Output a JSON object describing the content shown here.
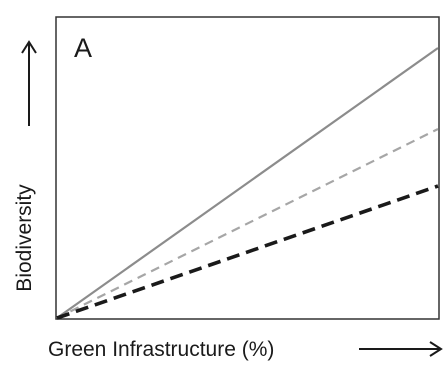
{
  "chart_data": {
    "type": "line",
    "panel_label": "A",
    "xlabel": "Green Infrastructure (%)",
    "ylabel": "Biodiversity",
    "xlim": [
      0,
      1
    ],
    "ylim": [
      0,
      1
    ],
    "grid": false,
    "legend": "none",
    "series": [
      {
        "style": "solid",
        "color": "#8c8c8c",
        "x": [
          0,
          1
        ],
        "y": [
          0,
          0.9
        ]
      },
      {
        "style": "dashed",
        "color": "#a6a6a6",
        "x": [
          0,
          1
        ],
        "y": [
          0,
          0.63
        ]
      },
      {
        "style": "dashed-bold",
        "color": "#1a1a1a",
        "x": [
          0,
          1
        ],
        "y": [
          0,
          0.44
        ]
      }
    ]
  }
}
